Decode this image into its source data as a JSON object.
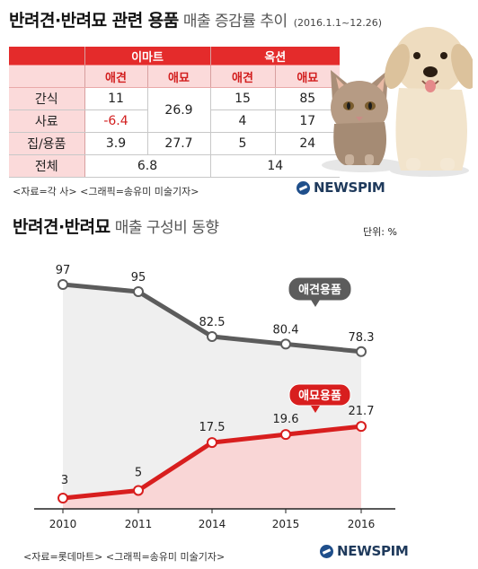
{
  "table_section": {
    "title_bold": "반려견·반려묘 관련 용품",
    "title_light": "매출 증감률 추이",
    "period": "(2016.1.1~12.26)",
    "groups": [
      "이마트",
      "옥션"
    ],
    "subheaders": [
      "애견",
      "애묘",
      "애견",
      "애묘"
    ],
    "rows": [
      {
        "label": "간식",
        "emart_dog": "11",
        "auction_dog": "15",
        "auction_cat": "85"
      },
      {
        "label": "사료",
        "emart_dog": "-6.4",
        "auction_dog": "4",
        "auction_cat": "17"
      },
      {
        "label": "집/용품",
        "emart_dog": "3.9",
        "emart_cat": "27.7",
        "auction_dog": "5",
        "auction_cat": "24"
      }
    ],
    "emart_cat_merged": "26.9",
    "total": {
      "label": "전체",
      "emart": "6.8",
      "auction": "14"
    },
    "source": "<자료=각 사> <그래픽=송유미 미술기자>",
    "logo": "NEWSPIM"
  },
  "chart_section": {
    "title_bold": "반려견·반려묘",
    "title_light": "매출 구성비 동향",
    "unit": "단위: %",
    "source": "<자료=롯데마트> <그래픽=송유미 미술기자>",
    "logo": "NEWSPIM"
  },
  "chart_data": {
    "type": "line",
    "x": [
      "2010",
      "2011",
      "2014",
      "2015",
      "2016"
    ],
    "series": [
      {
        "name": "애견용품",
        "values": [
          97,
          95,
          82.5,
          80.4,
          78.3
        ],
        "labels": [
          "97",
          "95",
          "82.5",
          "80.4",
          "78.3"
        ],
        "color": "#5c5c5c",
        "fill": "#efefef"
      },
      {
        "name": "애묘용품",
        "values": [
          3,
          5,
          17.5,
          19.6,
          21.7
        ],
        "labels": [
          "3",
          "5",
          "17.5",
          "19.6",
          "21.7"
        ],
        "color": "#d81e1e",
        "fill": "#f9d6d6"
      }
    ],
    "ylabel": "",
    "xlabel": "",
    "grid": false,
    "legend": "inline-callouts"
  }
}
